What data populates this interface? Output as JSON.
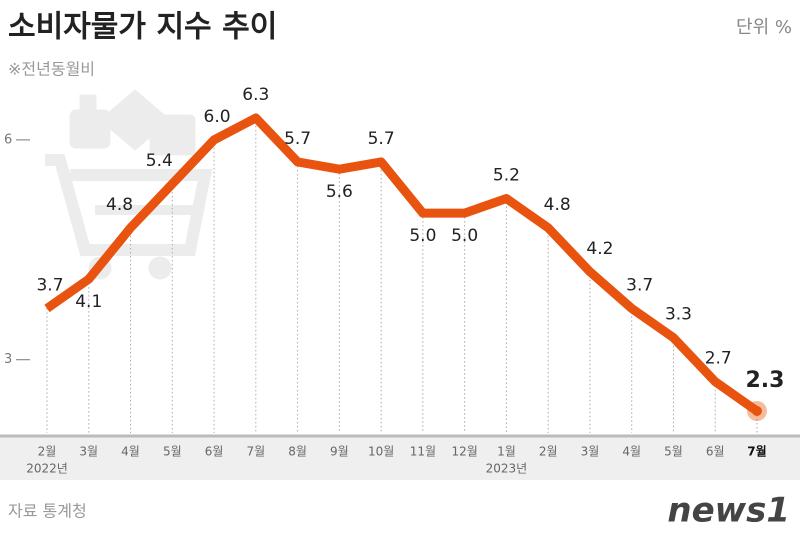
{
  "chart_data": {
    "type": "line",
    "title": "소비자물가 지수 추이",
    "unit": "단위 %",
    "subtitle": "※전년동월비",
    "source": "자료 통계청",
    "logo": "news1",
    "categories": [
      "2월",
      "3월",
      "4월",
      "5월",
      "6월",
      "7월",
      "8월",
      "9월",
      "10월",
      "11월",
      "12월",
      "1월",
      "2월",
      "3월",
      "4월",
      "5월",
      "6월",
      "7월"
    ],
    "category_sublabels": [
      "2022년",
      null,
      null,
      null,
      null,
      null,
      null,
      null,
      null,
      null,
      null,
      "2023년",
      null,
      null,
      null,
      null,
      null,
      null
    ],
    "values": [
      3.7,
      4.1,
      4.8,
      5.4,
      6.0,
      6.3,
      5.7,
      5.6,
      5.7,
      5.0,
      5.0,
      5.2,
      4.8,
      4.2,
      3.7,
      3.3,
      2.7,
      2.3
    ],
    "value_labels": [
      "3.7",
      "4.1",
      "4.8",
      "5.4",
      "6.0",
      "6.3",
      "5.7",
      "5.6",
      "5.7",
      "5.0",
      "5.0",
      "5.2",
      "4.8",
      "4.2",
      "3.7",
      "3.3",
      "2.7",
      "2.3"
    ],
    "color": "#e8540f",
    "ylim": [
      2,
      7.5
    ],
    "yticks": [
      3,
      6
    ]
  }
}
